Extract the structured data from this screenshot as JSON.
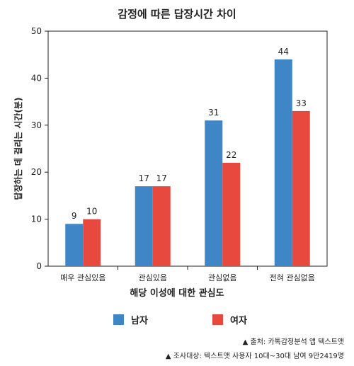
{
  "chart_data": {
    "type": "bar",
    "title": "감정에 따른 답장시간 차이",
    "xlabel": "해당 이성에 대한 관심도",
    "ylabel": "답장하는 데 걸리는 시간(분)",
    "categories": [
      "매우 관심있음",
      "관심있음",
      "관심없음",
      "전혀 관심없음"
    ],
    "series": [
      {
        "name": "남자",
        "values": [
          9,
          17,
          31,
          44
        ],
        "color": "#3f86c6"
      },
      {
        "name": "여자",
        "values": [
          10,
          17,
          22,
          33
        ],
        "color": "#e8493e"
      }
    ],
    "ylim": [
      0,
      50
    ],
    "yticks": [
      0,
      10,
      20,
      30,
      40,
      50
    ],
    "grid": false,
    "legend_position": "bottom",
    "data_labels": true
  },
  "source": {
    "line1": "▲ 출처: 카톡감정분석 앱 텍스트앳",
    "line2": "▲ 조사대상: 텍스트앳 사용자 10대~30대 남여 9만2419명"
  }
}
